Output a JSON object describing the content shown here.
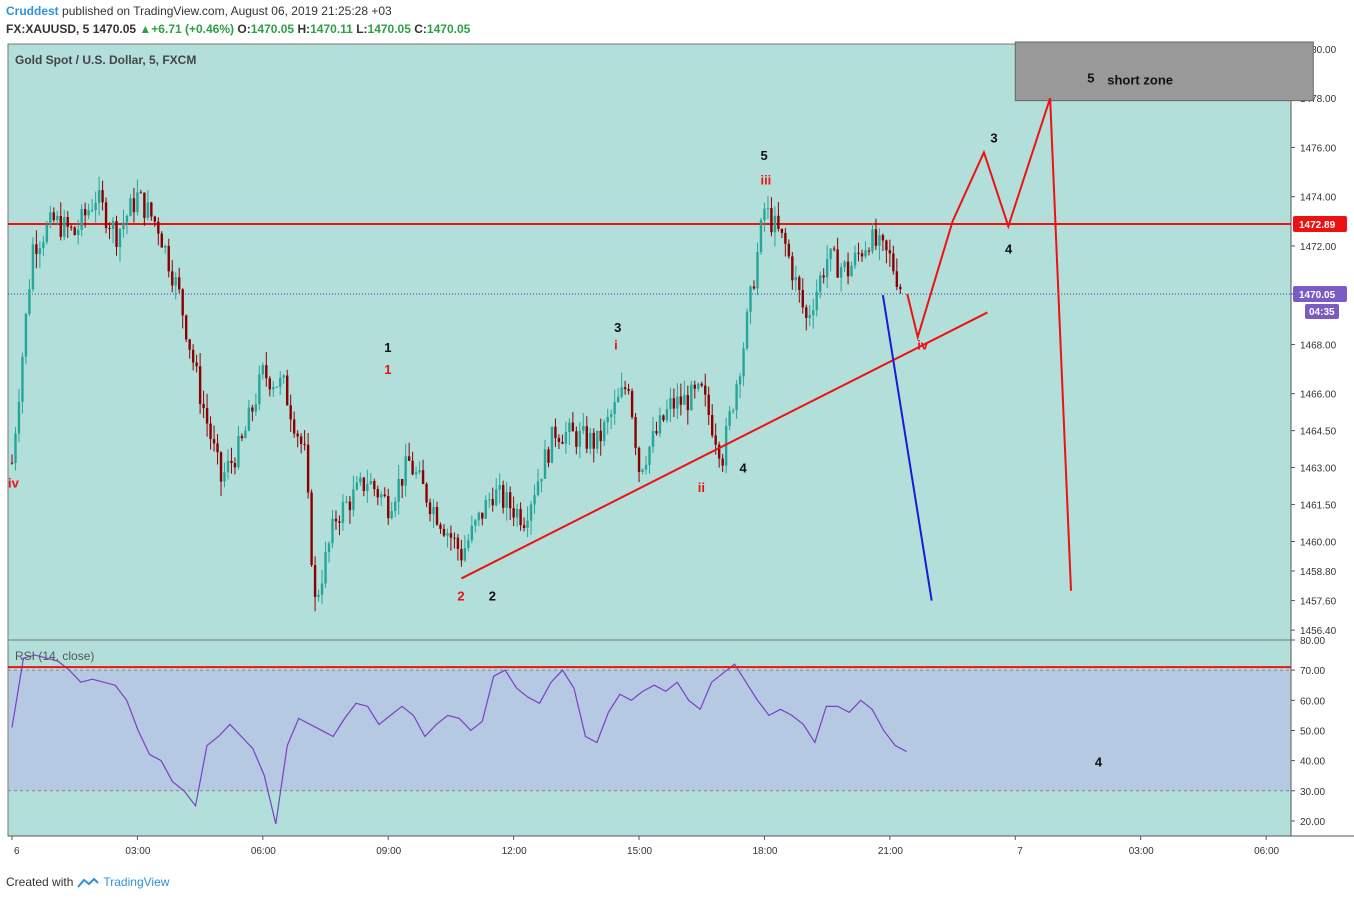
{
  "header": {
    "author": "Cruddest",
    "published": "published on TradingView.com, August 06, 2019 21:25:28 +03",
    "symbol": "FX:XAUUSD, 5",
    "last": "1470.05",
    "change": "▲+6.71 (+0.46%)",
    "o_label": "O:",
    "o": "1470.05",
    "h_label": "H:",
    "h": "1470.11",
    "l_label": "L:",
    "l": "1470.05",
    "c_label": "C:",
    "c": "1470.05"
  },
  "footer": {
    "created": "Created with",
    "brand": "TradingView"
  },
  "colors": {
    "bg": "#b3dfdb",
    "rsiBand": "#b6c9e3",
    "up": "#26a69a",
    "down": "#8b0000",
    "red": "#ee1111",
    "blue": "#1a1ad4",
    "rsi": "#7b3fc4"
  },
  "chart_data": {
    "type": "candlestick",
    "title": "Gold Spot / U.S. Dollar, 5, FXCM",
    "price_axis": [
      "1480.00",
      "1478.00",
      "1476.00",
      "1474.00",
      "1472.00",
      "1470.05",
      "1468.00",
      "1466.00",
      "1464.50",
      "1463.00",
      "1461.50",
      "1460.00",
      "1458.80",
      "1457.60",
      "1456.40"
    ],
    "price_range": [
      1456.0,
      1480.2
    ],
    "time_axis": [
      "6",
      "03:00",
      "06:00",
      "09:00",
      "12:00",
      "15:00",
      "18:00",
      "21:00",
      "7",
      "03:00",
      "06:00"
    ],
    "resistance_level": 1472.89,
    "current_price": 1470.05,
    "countdown": "04:35",
    "approx_closes": [
      {
        "t": "00:00",
        "p": 1463.2
      },
      {
        "t": "00:30",
        "p": 1472.0
      },
      {
        "t": "01:00",
        "p": 1473.0
      },
      {
        "t": "01:30",
        "p": 1472.5
      },
      {
        "t": "02:00",
        "p": 1474.0
      },
      {
        "t": "02:30",
        "p": 1472.5
      },
      {
        "t": "03:00",
        "p": 1474.0
      },
      {
        "t": "03:30",
        "p": 1472.8
      },
      {
        "t": "04:00",
        "p": 1470.0
      },
      {
        "t": "04:30",
        "p": 1466.0
      },
      {
        "t": "05:00",
        "p": 1462.5
      },
      {
        "t": "05:30",
        "p": 1464.0
      },
      {
        "t": "06:00",
        "p": 1466.8
      },
      {
        "t": "06:30",
        "p": 1466.3
      },
      {
        "t": "07:00",
        "p": 1463.5
      },
      {
        "t": "07:15",
        "p": 1457.5
      },
      {
        "t": "07:45",
        "p": 1461.0
      },
      {
        "t": "08:30",
        "p": 1462.5
      },
      {
        "t": "09:00",
        "p": 1461.5
      },
      {
        "t": "09:30",
        "p": 1463.2
      },
      {
        "t": "10:00",
        "p": 1461.6
      },
      {
        "t": "10:45",
        "p": 1459.5
      },
      {
        "t": "11:30",
        "p": 1462.0
      },
      {
        "t": "12:15",
        "p": 1461.0
      },
      {
        "t": "13:00",
        "p": 1464.5
      },
      {
        "t": "14:00",
        "p": 1464.0
      },
      {
        "t": "14:45",
        "p": 1466.5
      },
      {
        "t": "15:00",
        "p": 1463.0
      },
      {
        "t": "15:45",
        "p": 1465.5
      },
      {
        "t": "16:30",
        "p": 1466.0
      },
      {
        "t": "17:00",
        "p": 1463.5
      },
      {
        "t": "17:30",
        "p": 1468.0
      },
      {
        "t": "18:00",
        "p": 1473.5
      },
      {
        "t": "18:30",
        "p": 1472.0
      },
      {
        "t": "19:00",
        "p": 1469.0
      },
      {
        "t": "19:30",
        "p": 1471.5
      },
      {
        "t": "20:00",
        "p": 1471.0
      },
      {
        "t": "20:30",
        "p": 1472.3
      },
      {
        "t": "21:00",
        "p": 1471.5
      },
      {
        "t": "21:20",
        "p": 1470.05
      }
    ],
    "trendline": [
      {
        "t": "10:45",
        "p": 1458.5
      },
      {
        "t": "23:20",
        "p": 1469.3
      }
    ],
    "projection_red": [
      {
        "t": "21:25",
        "p": 1470.05
      },
      {
        "t": "21:40",
        "p": 1468.3
      },
      {
        "t": "22:30",
        "p": 1473.0
      },
      {
        "t": "23:15",
        "p": 1475.8
      },
      {
        "t": "23:50",
        "p": 1472.8
      },
      {
        "t": "00:50",
        "p": 1478.0
      },
      {
        "t": "01:20",
        "p": 1458.0
      }
    ],
    "projection_blue": [
      {
        "t": "20:50",
        "p": 1470.0
      },
      {
        "t": "22:00",
        "p": 1457.6
      }
    ],
    "short_zone": {
      "label_num": "5",
      "label": "short zone",
      "p_low": 1477.9,
      "p_high": 1480.2
    },
    "wave_labels": [
      {
        "text": "iv",
        "color": "red",
        "t": "00:00",
        "p": 1462.2
      },
      {
        "text": "1",
        "color": "black",
        "t": "09:00",
        "p": 1467.7
      },
      {
        "text": "1",
        "color": "red",
        "t": "09:00",
        "p": 1466.8
      },
      {
        "text": "2",
        "color": "red",
        "t": "10:45",
        "p": 1457.6
      },
      {
        "text": "2",
        "color": "black",
        "t": "11:30",
        "p": 1457.6
      },
      {
        "text": "3",
        "color": "black",
        "t": "14:30",
        "p": 1468.5
      },
      {
        "text": "i",
        "color": "red",
        "t": "14:30",
        "p": 1467.8
      },
      {
        "text": "ii",
        "color": "red",
        "t": "16:30",
        "p": 1462.0
      },
      {
        "text": "4",
        "color": "black",
        "t": "17:30",
        "p": 1462.8
      },
      {
        "text": "5",
        "color": "black",
        "t": "18:00",
        "p": 1475.5
      },
      {
        "text": "iii",
        "color": "red",
        "t": "18:00",
        "p": 1474.5
      },
      {
        "text": "iv",
        "color": "red",
        "t": "21:45",
        "p": 1467.8
      },
      {
        "text": "3",
        "color": "black",
        "t": "23:30",
        "p": 1476.2
      },
      {
        "text": "4",
        "color": "black",
        "t": "23:50",
        "p": 1471.7
      }
    ],
    "rsi": {
      "label": "RSI (14, close)",
      "axis": [
        "80.00",
        "70.00",
        "60.00",
        "50.00",
        "40.00",
        "30.00",
        "20.00"
      ],
      "range": [
        15,
        80
      ],
      "upper": 70,
      "lower": 30,
      "overbought_line": 71,
      "annotation": "4",
      "values": [
        51,
        74,
        75,
        74,
        73,
        70,
        66,
        67,
        66,
        65,
        60,
        50,
        42,
        40,
        33,
        30,
        25,
        45,
        48,
        52,
        48,
        44,
        35,
        19,
        45,
        54,
        52,
        50,
        48,
        54,
        59,
        58,
        52,
        55,
        58,
        55,
        48,
        52,
        55,
        54,
        50,
        53,
        68,
        70,
        64,
        61,
        59,
        66,
        70,
        64,
        48,
        46,
        56,
        62,
        60,
        63,
        65,
        63,
        66,
        60,
        57,
        66,
        69,
        72,
        66,
        60,
        55,
        57,
        55,
        52,
        46,
        58,
        58,
        56,
        60,
        57,
        50,
        45,
        43
      ]
    }
  }
}
